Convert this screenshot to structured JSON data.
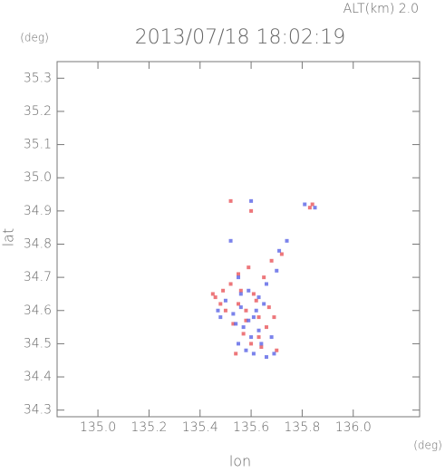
{
  "chart_data": {
    "type": "scatter",
    "title": "2013/07/18 18:02:19",
    "subtitle": "ALT(km) 2.0",
    "y_unit": "(deg)",
    "x_unit": "(deg)",
    "x_label": "lon",
    "y_label": "lat",
    "xlim": [
      134.84,
      136.26
    ],
    "ylim": [
      34.28,
      35.35
    ],
    "xticks": [
      {
        "value": 135,
        "label": "135.0"
      },
      135.2,
      135.4,
      135.6,
      135.8,
      {
        "value": 136,
        "label": "136.0"
      }
    ],
    "yticks": [
      34.3,
      34.4,
      34.5,
      34.6,
      34.7,
      34.8,
      34.9,
      {
        "value": 35,
        "label": "35.0"
      },
      35.1,
      35.2,
      35.3
    ],
    "series": [
      {
        "color": "#e8555a",
        "x": [
          135.46,
          135.49,
          135.52,
          135.55,
          135.58,
          135.61,
          135.63,
          135.66,
          135.53,
          135.57,
          135.6,
          135.64,
          135.5,
          135.56,
          135.62,
          135.67,
          135.7,
          135.55,
          135.59,
          135.65,
          135.83,
          135.84,
          135.72,
          135.68,
          135.52,
          135.6,
          135.45,
          135.58,
          135.63,
          135.54,
          135.69,
          135.48
        ],
        "values": [
          34.64,
          34.66,
          34.68,
          34.62,
          34.6,
          34.65,
          34.58,
          34.55,
          34.56,
          34.53,
          34.5,
          34.49,
          34.6,
          34.66,
          34.63,
          34.61,
          34.48,
          34.71,
          34.73,
          34.7,
          34.91,
          34.92,
          34.77,
          34.75,
          34.93,
          34.9,
          34.65,
          34.57,
          34.52,
          34.47,
          34.58,
          34.62
        ]
      },
      {
        "color": "#5a64e6",
        "x": [
          135.47,
          135.5,
          135.53,
          135.56,
          135.59,
          135.62,
          135.65,
          135.57,
          135.6,
          135.63,
          135.55,
          135.58,
          135.61,
          135.66,
          135.69,
          135.7,
          135.71,
          135.74,
          135.81,
          135.85,
          135.6,
          135.52,
          135.55,
          135.66,
          135.63,
          135.54,
          135.48,
          135.59,
          135.68,
          135.64,
          135.56,
          135.61
        ],
        "values": [
          34.6,
          34.63,
          34.59,
          34.61,
          34.57,
          34.6,
          34.62,
          34.55,
          34.52,
          34.54,
          34.5,
          34.48,
          34.47,
          34.46,
          34.47,
          34.72,
          34.78,
          34.81,
          34.92,
          34.91,
          34.93,
          34.81,
          34.7,
          34.68,
          34.64,
          34.56,
          34.58,
          34.66,
          34.52,
          34.5,
          34.65,
          34.58
        ]
      }
    ]
  }
}
